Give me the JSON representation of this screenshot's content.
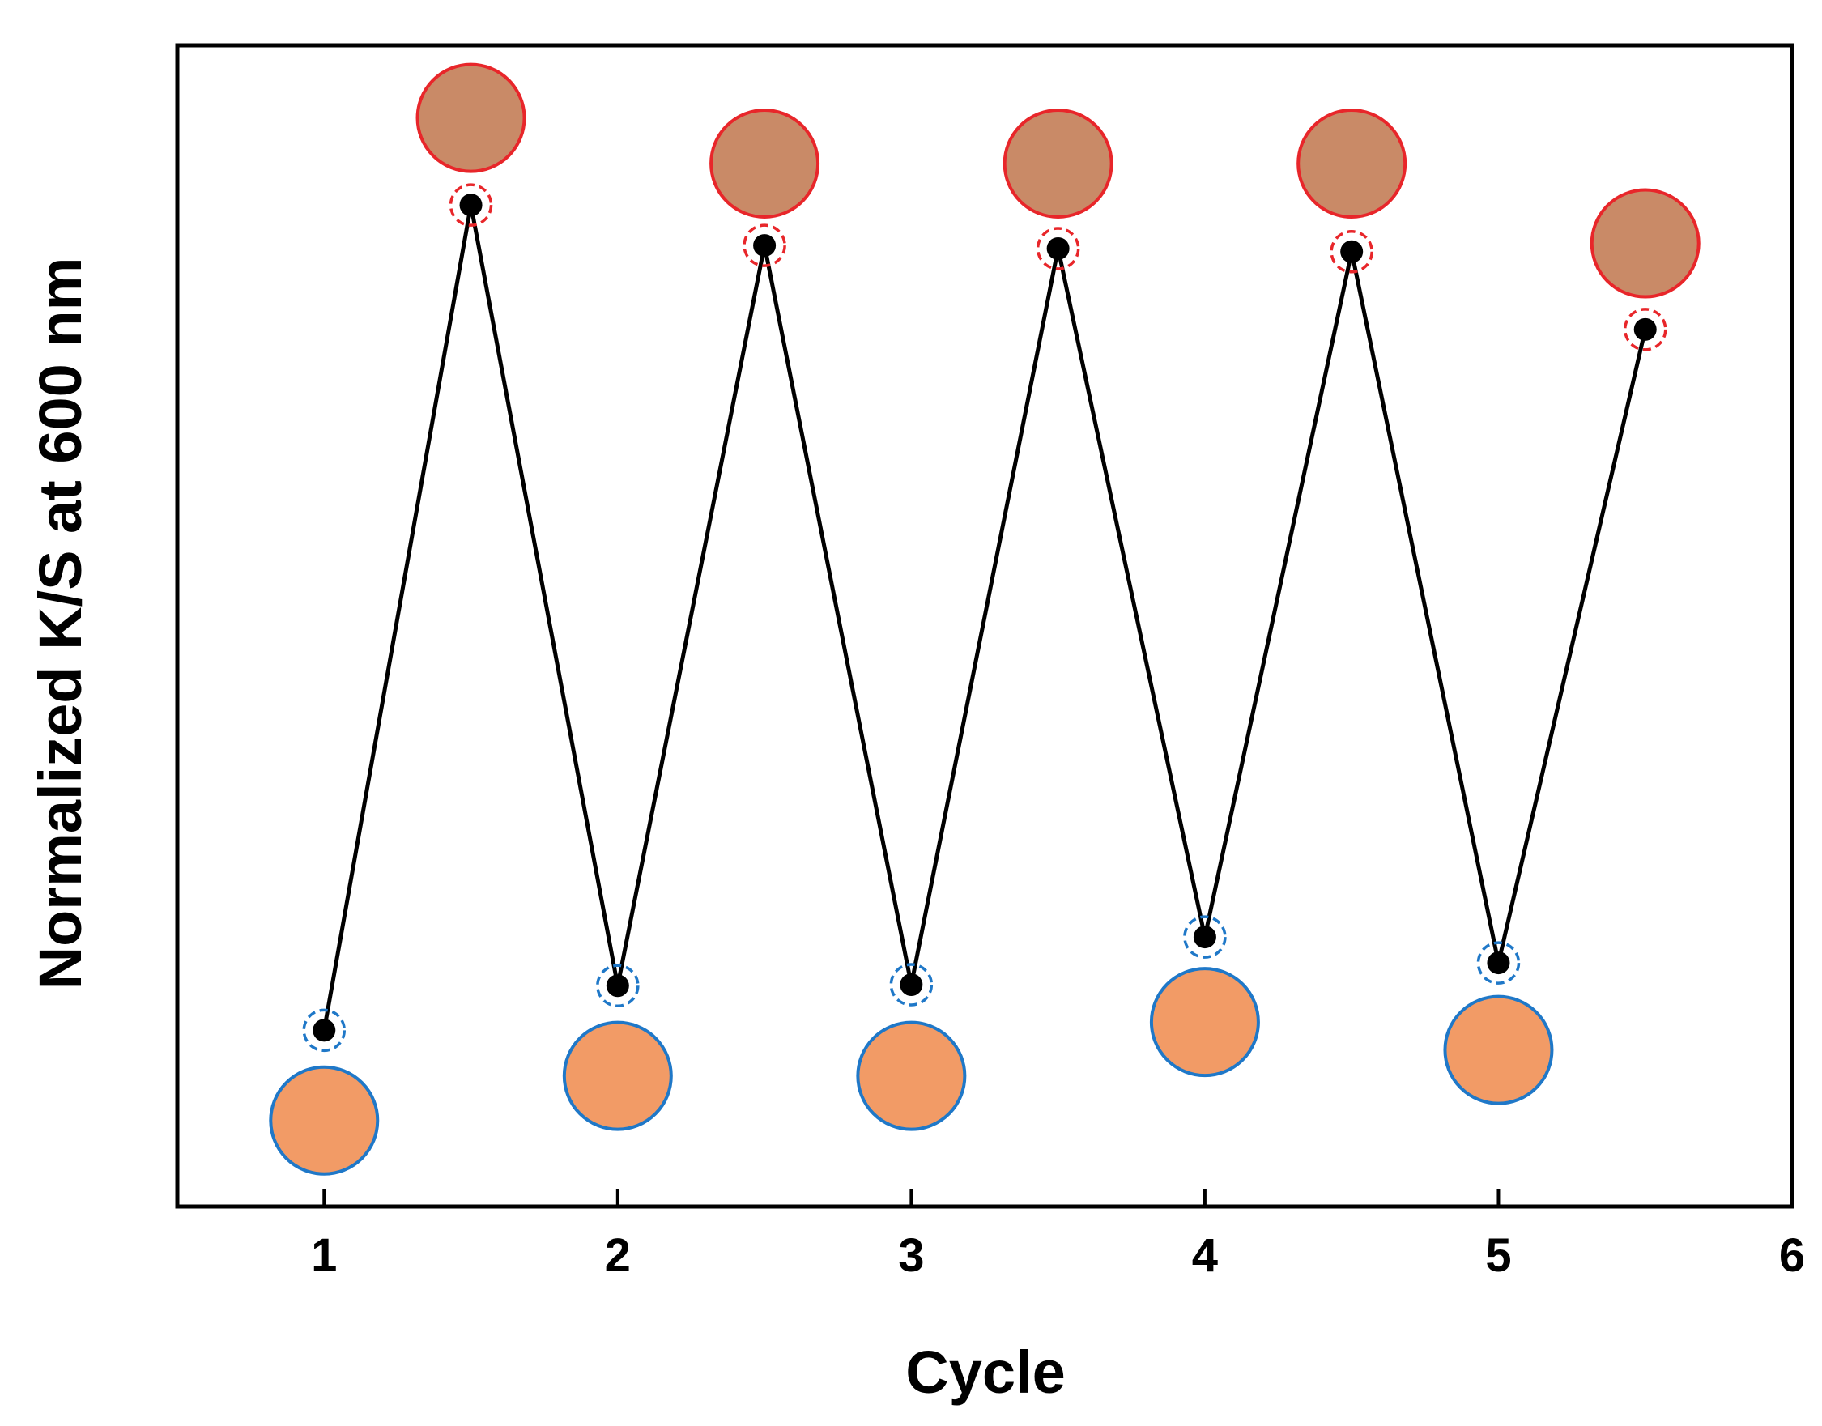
{
  "chart_data": {
    "type": "line",
    "title": "",
    "xlabel": "Cycle",
    "ylabel": "Normalized K/S at 600 nm",
    "xlim": [
      0.5,
      6
    ],
    "ylim": [
      0,
      1.12
    ],
    "x_ticks": [
      1,
      2,
      3,
      4,
      5,
      6
    ],
    "y_ticks_labeled": false,
    "grid": false,
    "series": [
      {
        "name": "K/S",
        "color": "#000000",
        "x": [
          1,
          1.5,
          2,
          2.5,
          3,
          3.5,
          4,
          4.5,
          5,
          5.5
        ],
        "y": [
          0.17,
          0.966,
          0.213,
          0.927,
          0.214,
          0.924,
          0.26,
          0.921,
          0.235,
          0.846
        ]
      }
    ],
    "swatches": [
      {
        "x": 1,
        "state": "low",
        "fill": "#F29B66",
        "stroke": "#1F78C8",
        "y": 0.083
      },
      {
        "x": 1.5,
        "state": "high",
        "fill": "#C98A67",
        "stroke": "#E8262A",
        "y": 1.05
      },
      {
        "x": 2,
        "state": "low",
        "fill": "#F29B66",
        "stroke": "#1F78C8",
        "y": 0.126
      },
      {
        "x": 2.5,
        "state": "high",
        "fill": "#C98A67",
        "stroke": "#E8262A",
        "y": 1.006
      },
      {
        "x": 3,
        "state": "low",
        "fill": "#F29B66",
        "stroke": "#1F78C8",
        "y": 0.126
      },
      {
        "x": 3.5,
        "state": "high",
        "fill": "#C98A67",
        "stroke": "#E8262A",
        "y": 1.006
      },
      {
        "x": 4,
        "state": "low",
        "fill": "#F29B66",
        "stroke": "#1F78C8",
        "y": 0.178
      },
      {
        "x": 4.5,
        "state": "high",
        "fill": "#C98A67",
        "stroke": "#E8262A",
        "y": 1.006
      },
      {
        "x": 5,
        "state": "low",
        "fill": "#F29B66",
        "stroke": "#1F78C8",
        "y": 0.151
      },
      {
        "x": 5.5,
        "state": "high",
        "fill": "#C98A67",
        "stroke": "#E8262A",
        "y": 0.929
      }
    ],
    "colors": {
      "line": "#000000",
      "low_ring": "#1F78C8",
      "high_ring": "#E8262A"
    }
  }
}
